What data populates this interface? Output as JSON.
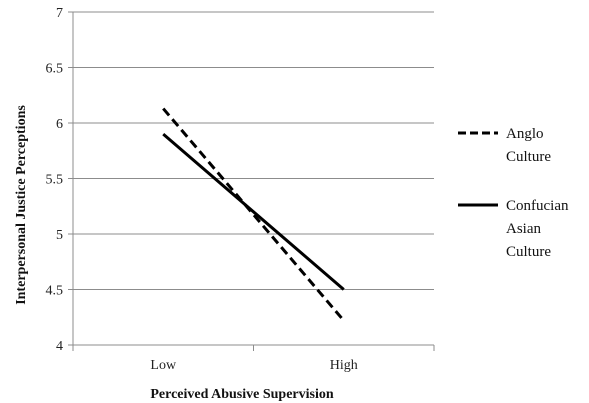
{
  "chart_data": {
    "type": "line",
    "title": "",
    "xlabel": "Perceived Abusive Supervision",
    "ylabel": "Interpersonal Justice Perceptions",
    "categories": [
      "Low",
      "High"
    ],
    "ylim": [
      4,
      7
    ],
    "yticks": [
      "4",
      "4.5",
      "5",
      "5.5",
      "6",
      "6.5",
      "7"
    ],
    "grid": true,
    "legend_position": "right",
    "series": [
      {
        "name_lines": [
          "Anglo",
          "Culture"
        ],
        "line_style": "dashed",
        "color": "#000000",
        "values": [
          6.13,
          4.22
        ]
      },
      {
        "name_lines": [
          "Confucian",
          "Asian",
          "Culture"
        ],
        "line_style": "solid",
        "color": "#000000",
        "values": [
          5.9,
          4.5
        ]
      }
    ]
  }
}
